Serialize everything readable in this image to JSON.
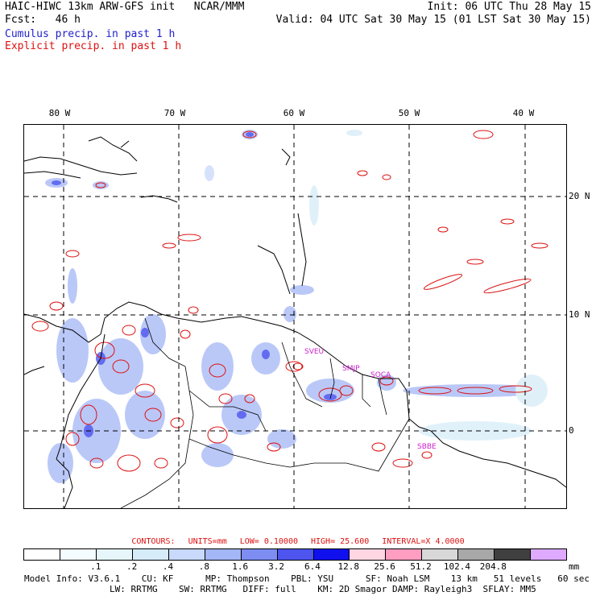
{
  "header": {
    "title_left": "HAIC-HIWC 13km ARW-GFS init   NCAR/MMM",
    "forecast": "Fcst:   46 h",
    "init": "Init: 06 UTC Thu 28 May 15",
    "valid": "Valid: 04 UTC Sat 30 May 15 (01 LST Sat 30 May 15)",
    "cumulus_label": "Cumulus precip. in past 1 h",
    "explicit_label": "Explicit precip. in past 1 h",
    "cumulus_color": "#2222cc",
    "explicit_color": "#dd1111"
  },
  "axes": {
    "longitudes": [
      "80 W",
      "70 W",
      "60 W",
      "50 W",
      "40 W"
    ],
    "latitudes": [
      "20 N",
      "10 N",
      "0"
    ]
  },
  "stations": [
    "SVEU",
    "SMJP",
    "SOCA",
    "SBBE"
  ],
  "contours": {
    "label": "CONTOURS:",
    "units": "UNITS=mm",
    "low": "LOW=  0.10000",
    "high": "HIGH=  25.600",
    "interval": "INTERVAL=X  4.0000"
  },
  "colorbar": {
    "colors": [
      "#ffffff",
      "#f4fcff",
      "#e6f6fb",
      "#d6ecf8",
      "#c9d9fb",
      "#a3b6f6",
      "#7d8df2",
      "#4d55ee",
      "#1010ee",
      "#ffd6e2",
      "#ff9ec0",
      "#d8d8d8",
      "#a8a8a8",
      "#404040",
      "#ddaaff"
    ],
    "labels": [
      ".1",
      ".2",
      ".4",
      ".8",
      "1.6",
      "3.2",
      "6.4",
      "12.8",
      "25.6",
      "51.2",
      "102.4",
      "204.8"
    ],
    "unit": "mm"
  },
  "model_info": {
    "line1": "Model Info: V3.6.1    CU: KF      MP: Thompson    PBL: YSU      SF: Noah LSM    13 km   51 levels   60 sec",
    "line2": "                LW: RRTMG    SW: RRTMG   DIFF: full    KM: 2D Smagor DAMP: Rayleigh3  SFLAY: MM5"
  }
}
